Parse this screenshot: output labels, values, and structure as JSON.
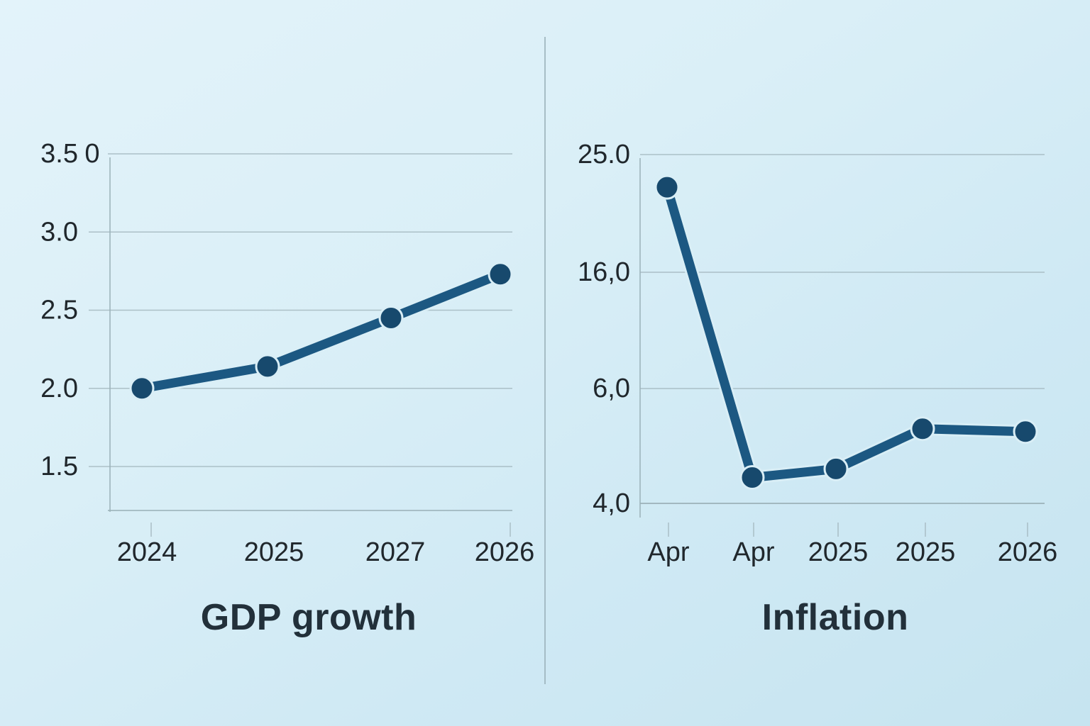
{
  "page": {
    "background_top_color": "#e3f3fa",
    "background_bottom_color": "#c6e4f0",
    "divider_color": "#9db4bc"
  },
  "style": {
    "line_color": "#1c5882",
    "line_halo_color": "#d9eef6",
    "marker_color": "#17496d",
    "marker_halo_color": "#d9eef6",
    "grid_color": "#a4b8bf",
    "axis_color": "#9cb3ba",
    "tick_mark_color": "#a4b8bf",
    "label_color": "#20272c",
    "title_color": "#22303a"
  },
  "chart_data": [
    {
      "type": "line",
      "title": "GDP growth",
      "categories": [
        "2024",
        "2025",
        "2027",
        "2026"
      ],
      "values": [
        2.0,
        2.14,
        2.45,
        2.73
      ],
      "y_tick_labels": [
        "3.5",
        "3.0",
        "2.5",
        "2.0",
        "1.5"
      ],
      "y_tick_values": [
        3.5,
        3.0,
        2.5,
        2.0,
        1.5
      ],
      "stray_axis_text": "0",
      "xlabel": "",
      "ylabel": "",
      "ylim": [
        1.25,
        3.5
      ],
      "grid": true,
      "legend": false
    },
    {
      "type": "line",
      "title": "Inflation",
      "categories": [
        "Apr",
        "Apr",
        "2025",
        "2025",
        "2026"
      ],
      "values": [
        22.5,
        4.45,
        4.6,
        5.3,
        5.25
      ],
      "y_tick_labels": [
        "25.0",
        "16,0",
        "6,0",
        "4,0"
      ],
      "y_tick_values": [
        25.0,
        16.0,
        6.0,
        4.0
      ],
      "xlabel": "",
      "ylabel": "",
      "ylim": [
        4.0,
        25.0
      ],
      "grid": true,
      "legend": false
    }
  ]
}
